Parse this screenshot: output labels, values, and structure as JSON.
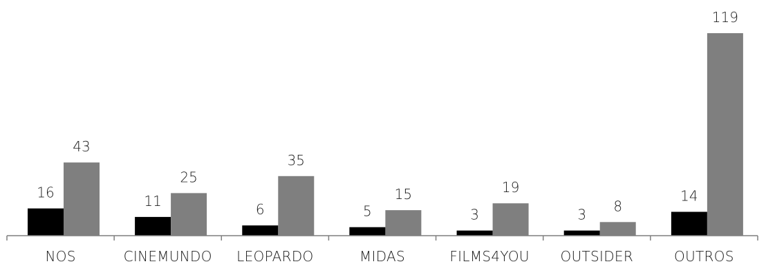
{
  "chart_data": {
    "type": "bar",
    "categories": [
      "NOS",
      "CINEMUNDO",
      "LEOPARDO",
      "MIDAS",
      "FILMS4YOU",
      "OUTSIDER",
      "OUTROS"
    ],
    "series": [
      {
        "values": [
          16,
          11,
          6,
          5,
          3,
          3,
          14
        ],
        "color": "#000000"
      },
      {
        "values": [
          43,
          25,
          35,
          15,
          19,
          8,
          119
        ],
        "color": "#7f7f7f"
      }
    ],
    "title": "",
    "xlabel": "",
    "ylabel": "",
    "ylim": [
      0,
      119
    ],
    "grid": false,
    "legend": "none",
    "data_labels": true
  }
}
